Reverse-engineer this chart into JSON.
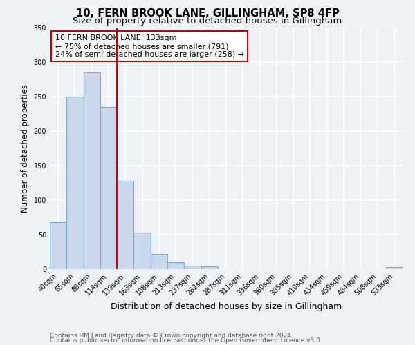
{
  "title1": "10, FERN BROOK LANE, GILLINGHAM, SP8 4FP",
  "title2": "Size of property relative to detached houses in Gillingham",
  "xlabel": "Distribution of detached houses by size in Gillingham",
  "ylabel": "Number of detached properties",
  "bar_labels": [
    "40sqm",
    "65sqm",
    "89sqm",
    "114sqm",
    "139sqm",
    "163sqm",
    "188sqm",
    "213sqm",
    "237sqm",
    "262sqm",
    "287sqm",
    "311sqm",
    "336sqm",
    "360sqm",
    "385sqm",
    "410sqm",
    "434sqm",
    "459sqm",
    "484sqm",
    "508sqm",
    "533sqm"
  ],
  "bar_values": [
    68,
    250,
    285,
    235,
    128,
    53,
    22,
    10,
    5,
    4,
    0,
    0,
    0,
    0,
    0,
    0,
    0,
    0,
    0,
    0,
    3
  ],
  "bar_color": "#c8d8ea",
  "bar_edge_color": "#7aaac8",
  "background_color": "#eef2f7",
  "grid_color": "#ffffff",
  "vline_position": 3.5,
  "vline_color": "#cc0000",
  "annotation_line1": "10 FERN BROOK LANE: 133sqm",
  "annotation_line2": "← 75% of detached houses are smaller (791)",
  "annotation_line3": "24% of semi-detached houses are larger (258) →",
  "annotation_box_color": "#cc0000",
  "ylim": [
    0,
    350
  ],
  "yticks": [
    0,
    50,
    100,
    150,
    200,
    250,
    300,
    350
  ],
  "footer1": "Contains HM Land Registry data © Crown copyright and database right 2024.",
  "footer2": "Contains public sector information licensed under the Open Government Licence v3.0.",
  "title_fontsize": 10.5,
  "subtitle_fontsize": 9.5,
  "xlabel_fontsize": 9,
  "ylabel_fontsize": 8.5,
  "tick_fontsize": 7,
  "annotation_fontsize": 8,
  "footer_fontsize": 6.5
}
